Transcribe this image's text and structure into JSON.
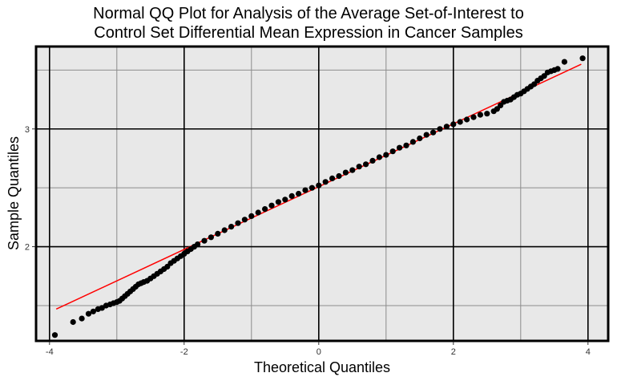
{
  "chart_data": {
    "type": "scatter",
    "title_line1": "Normal QQ Plot for Analysis of the Average Set-of-Interest to",
    "title_line2": "Control Set Differential Mean Expression in Cancer Samples",
    "xlabel": "Theoretical Quantiles",
    "ylabel": "Sample Quantiles",
    "xlim": [
      -4.2,
      4.3
    ],
    "ylim": [
      1.2,
      3.7
    ],
    "x_ticks": [
      {
        "value": -4,
        "label": "-4"
      },
      {
        "value": -2,
        "label": "-2"
      },
      {
        "value": 0,
        "label": "0"
      },
      {
        "value": 2,
        "label": "2"
      },
      {
        "value": 4,
        "label": "4"
      }
    ],
    "y_ticks": [
      {
        "value": 2,
        "label": "2"
      },
      {
        "value": 3,
        "label": "3"
      }
    ],
    "minor_x": [
      -3,
      -1,
      1,
      3
    ],
    "minor_y": [
      1.5,
      2.5,
      3.5
    ],
    "grid": true,
    "reference_line": {
      "color": "#ff0000",
      "x": [
        -3.9,
        3.9
      ],
      "y": [
        1.47,
        3.55
      ]
    },
    "point_color": "#000000",
    "points": [
      [
        -3.92,
        1.25
      ],
      [
        -3.65,
        1.36
      ],
      [
        -3.52,
        1.39
      ],
      [
        -3.42,
        1.43
      ],
      [
        -3.35,
        1.45
      ],
      [
        -3.28,
        1.47
      ],
      [
        -3.22,
        1.48
      ],
      [
        -3.16,
        1.5
      ],
      [
        -3.1,
        1.51
      ],
      [
        -3.05,
        1.52
      ],
      [
        -3.0,
        1.53
      ],
      [
        -2.96,
        1.54
      ],
      [
        -2.92,
        1.56
      ],
      [
        -2.88,
        1.58
      ],
      [
        -2.84,
        1.6
      ],
      [
        -2.8,
        1.62
      ],
      [
        -2.76,
        1.64
      ],
      [
        -2.72,
        1.66
      ],
      [
        -2.68,
        1.68
      ],
      [
        -2.64,
        1.69
      ],
      [
        -2.6,
        1.7
      ],
      [
        -2.55,
        1.71
      ],
      [
        -2.5,
        1.73
      ],
      [
        -2.45,
        1.75
      ],
      [
        -2.4,
        1.77
      ],
      [
        -2.35,
        1.79
      ],
      [
        -2.3,
        1.81
      ],
      [
        -2.25,
        1.83
      ],
      [
        -2.2,
        1.86
      ],
      [
        -2.15,
        1.88
      ],
      [
        -2.1,
        1.9
      ],
      [
        -2.05,
        1.92
      ],
      [
        -2.0,
        1.94
      ],
      [
        -1.95,
        1.96
      ],
      [
        -1.9,
        1.98
      ],
      [
        -1.85,
        2.0
      ],
      [
        -1.8,
        2.02
      ],
      [
        -1.7,
        2.05
      ],
      [
        -1.6,
        2.08
      ],
      [
        -1.5,
        2.11
      ],
      [
        -1.4,
        2.14
      ],
      [
        -1.3,
        2.17
      ],
      [
        -1.2,
        2.2
      ],
      [
        -1.1,
        2.23
      ],
      [
        -1.0,
        2.26
      ],
      [
        -0.9,
        2.29
      ],
      [
        -0.8,
        2.32
      ],
      [
        -0.7,
        2.35
      ],
      [
        -0.6,
        2.38
      ],
      [
        -0.5,
        2.4
      ],
      [
        -0.4,
        2.43
      ],
      [
        -0.3,
        2.45
      ],
      [
        -0.2,
        2.48
      ],
      [
        -0.1,
        2.5
      ],
      [
        0.0,
        2.52
      ],
      [
        0.1,
        2.55
      ],
      [
        0.2,
        2.58
      ],
      [
        0.3,
        2.6
      ],
      [
        0.4,
        2.63
      ],
      [
        0.5,
        2.65
      ],
      [
        0.6,
        2.68
      ],
      [
        0.7,
        2.7
      ],
      [
        0.8,
        2.73
      ],
      [
        0.9,
        2.76
      ],
      [
        1.0,
        2.78
      ],
      [
        1.1,
        2.81
      ],
      [
        1.2,
        2.84
      ],
      [
        1.3,
        2.86
      ],
      [
        1.4,
        2.89
      ],
      [
        1.5,
        2.92
      ],
      [
        1.6,
        2.95
      ],
      [
        1.7,
        2.97
      ],
      [
        1.8,
        3.0
      ],
      [
        1.9,
        3.02
      ],
      [
        2.0,
        3.04
      ],
      [
        2.1,
        3.06
      ],
      [
        2.2,
        3.08
      ],
      [
        2.3,
        3.1
      ],
      [
        2.4,
        3.12
      ],
      [
        2.5,
        3.13
      ],
      [
        2.6,
        3.15
      ],
      [
        2.65,
        3.17
      ],
      [
        2.7,
        3.2
      ],
      [
        2.75,
        3.23
      ],
      [
        2.8,
        3.24
      ],
      [
        2.85,
        3.25
      ],
      [
        2.9,
        3.27
      ],
      [
        2.95,
        3.29
      ],
      [
        3.0,
        3.3
      ],
      [
        3.05,
        3.32
      ],
      [
        3.1,
        3.34
      ],
      [
        3.15,
        3.36
      ],
      [
        3.2,
        3.38
      ],
      [
        3.25,
        3.41
      ],
      [
        3.3,
        3.43
      ],
      [
        3.35,
        3.45
      ],
      [
        3.4,
        3.48
      ],
      [
        3.45,
        3.49
      ],
      [
        3.5,
        3.5
      ],
      [
        3.55,
        3.51
      ],
      [
        3.65,
        3.57
      ],
      [
        3.92,
        3.6
      ]
    ]
  }
}
